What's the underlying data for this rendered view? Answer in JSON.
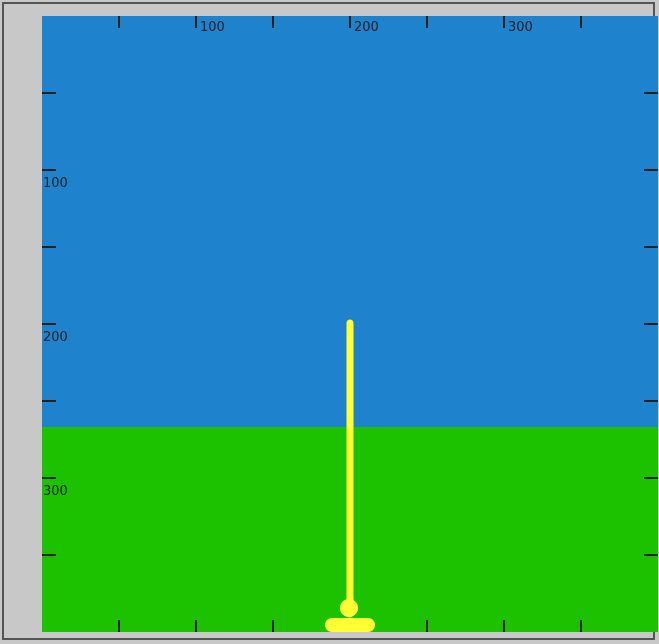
{
  "scene": {
    "colors": {
      "sky": "#1e82cc",
      "ground": "#1cc200",
      "cannon": "#ffff33",
      "tick": "#222222",
      "border": "#555555",
      "background": "#c8c8c8"
    },
    "x_axis": {
      "labels": [
        "100",
        "200",
        "300"
      ]
    },
    "y_axis": {
      "labels": [
        "100",
        "200",
        "300"
      ]
    }
  }
}
